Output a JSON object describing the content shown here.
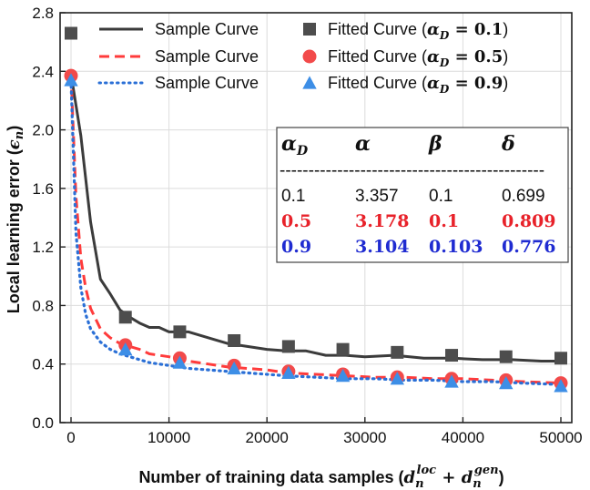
{
  "chart_data": {
    "type": "line",
    "xlabel": "Number of training data samples (d_n^loc + d_n^gen)",
    "ylabel": "Local learning error (ϵ_n)",
    "xlim": [
      0,
      50000
    ],
    "ylim": [
      0.0,
      2.8
    ],
    "xticks": [
      0,
      10000,
      20000,
      30000,
      40000,
      50000
    ],
    "yticks": [
      0.0,
      0.4,
      0.8,
      1.2,
      1.6,
      2.0,
      2.4,
      2.8
    ],
    "xtick_labels": [
      "0",
      "10000",
      "20000",
      "30000",
      "40000",
      "50000"
    ],
    "ytick_labels": [
      "0.0",
      "0.4",
      "0.8",
      "1.2",
      "1.6",
      "2.0",
      "2.4",
      "2.8"
    ],
    "series": [
      {
        "name": "Sample Curve",
        "kind": "line",
        "style": "solid",
        "color": "#3b3b3b",
        "x": [
          0,
          1000,
          2000,
          3000,
          4000,
          5000,
          6000,
          7000,
          8000,
          9000,
          10000,
          12000,
          14000,
          16000,
          18000,
          20000,
          22000,
          24000,
          26000,
          28000,
          30000,
          33000,
          36000,
          39000,
          42000,
          45000,
          48000,
          50000
        ],
        "values": [
          2.38,
          1.96,
          1.37,
          0.98,
          0.88,
          0.77,
          0.72,
          0.68,
          0.65,
          0.65,
          0.62,
          0.62,
          0.58,
          0.54,
          0.52,
          0.5,
          0.49,
          0.49,
          0.46,
          0.46,
          0.45,
          0.46,
          0.44,
          0.44,
          0.43,
          0.43,
          0.42,
          0.42
        ]
      },
      {
        "name": "Fitted Curve (α_D = 0.1)",
        "kind": "markers",
        "marker": "square",
        "color": "#4d4d4d",
        "x": [
          0,
          5550,
          11100,
          16650,
          22200,
          27750,
          33300,
          38850,
          44400,
          50000
        ],
        "values": [
          2.66,
          0.72,
          0.62,
          0.56,
          0.52,
          0.5,
          0.48,
          0.46,
          0.45,
          0.44
        ]
      },
      {
        "name": "Sample Curve",
        "kind": "line",
        "style": "dashed",
        "color": "#ff3b3b",
        "x": [
          0,
          500,
          1000,
          1500,
          2000,
          3000,
          4000,
          5000,
          6000,
          7000,
          8000,
          10000,
          12000,
          14000,
          16000,
          18000,
          20000,
          22000,
          25000,
          28000,
          31000,
          34000,
          37000,
          40000,
          43000,
          46000,
          50000
        ],
        "values": [
          2.38,
          1.55,
          1.12,
          0.92,
          0.78,
          0.64,
          0.58,
          0.54,
          0.52,
          0.5,
          0.47,
          0.45,
          0.42,
          0.4,
          0.38,
          0.37,
          0.36,
          0.34,
          0.33,
          0.32,
          0.31,
          0.31,
          0.3,
          0.3,
          0.29,
          0.28,
          0.27
        ]
      },
      {
        "name": "Fitted Curve (α_D = 0.5)",
        "kind": "markers",
        "marker": "circle",
        "color": "#f24a4a",
        "x": [
          0,
          5550,
          11100,
          16650,
          22200,
          27750,
          33300,
          38850,
          44400,
          50000
        ],
        "values": [
          2.37,
          0.53,
          0.44,
          0.39,
          0.35,
          0.33,
          0.31,
          0.3,
          0.29,
          0.27
        ]
      },
      {
        "name": "Sample Curve",
        "kind": "line",
        "style": "dotted",
        "color": "#2a6fd6",
        "x": [
          0,
          500,
          1000,
          1500,
          2000,
          3000,
          4000,
          5000,
          6000,
          7000,
          8000,
          10000,
          12000,
          14000,
          16000,
          18000,
          20000,
          22000,
          25000,
          28000,
          31000,
          34000,
          37000,
          40000,
          43000,
          46000,
          50000
        ],
        "values": [
          2.34,
          1.3,
          0.92,
          0.74,
          0.64,
          0.55,
          0.5,
          0.47,
          0.45,
          0.43,
          0.41,
          0.39,
          0.37,
          0.36,
          0.35,
          0.34,
          0.33,
          0.32,
          0.31,
          0.3,
          0.3,
          0.29,
          0.29,
          0.28,
          0.28,
          0.27,
          0.26
        ]
      },
      {
        "name": "Fitted Curve (α_D = 0.9)",
        "kind": "markers",
        "marker": "triangle",
        "color": "#3d8ee6",
        "x": [
          0,
          5550,
          11100,
          16650,
          22200,
          27750,
          33300,
          38850,
          44400,
          50000
        ],
        "values": [
          2.34,
          0.5,
          0.41,
          0.37,
          0.34,
          0.32,
          0.3,
          0.28,
          0.27,
          0.25
        ]
      }
    ],
    "legend": {
      "placement": "top-right",
      "entries": [
        {
          "label_prefix": "Sample Curve",
          "label_math": ""
        },
        {
          "label_prefix": "Fitted Curve (",
          "label_math": "α",
          "label_sub": "D",
          "label_rest": " = 0.1",
          "label_close": ")"
        },
        {
          "label_prefix": "Sample Curve",
          "label_math": ""
        },
        {
          "label_prefix": "Fitted Curve (",
          "label_math": "α",
          "label_sub": "D",
          "label_rest": " = 0.5",
          "label_close": ")"
        },
        {
          "label_prefix": "Sample Curve",
          "label_math": ""
        },
        {
          "label_prefix": "Fitted Curve (",
          "label_math": "α",
          "label_sub": "D",
          "label_rest": " = 0.9",
          "label_close": ")"
        }
      ]
    },
    "table": {
      "headers": [
        "α",
        "α",
        "β",
        "δ"
      ],
      "header_sub": "D",
      "separator": "----------------------------------------------",
      "rows": [
        {
          "cells": [
            "0.1",
            "3.357",
            "0.1",
            "0.699"
          ],
          "color": "#111111"
        },
        {
          "cells": [
            "0.5",
            "3.178",
            "0.1",
            "0.809"
          ],
          "color": "#e8222a"
        },
        {
          "cells": [
            "0.9",
            "3.104",
            "0.103",
            "0.776"
          ],
          "color": "#1f2bd1"
        }
      ]
    },
    "axis_label_parts": {
      "x_prefix": "Number of training data samples (",
      "x_d1": "d",
      "x_sub1": "n",
      "x_sup1": "loc",
      "x_plus": " + ",
      "x_d2": "d",
      "x_sub2": "n",
      "x_sup2": "gen",
      "x_close": ")",
      "y_prefix": "Local learning error (",
      "y_eps": "ϵ",
      "y_sub": "n",
      "y_close": ")"
    }
  }
}
